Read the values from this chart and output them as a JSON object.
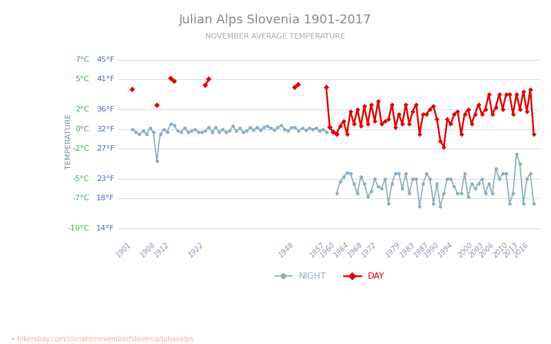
{
  "title": "Julian Alps Slovenia 1901-2017",
  "subtitle": "NOVEMBER AVERAGE TEMPERATURE",
  "ylabel": "TEMPERATURE",
  "footer": "hikersbay.com/climate/november/slovenia/julianalps",
  "legend_night": "NIGHT",
  "legend_day": "DAY",
  "night_color": "#8aafc0",
  "day_color": "#e00000",
  "background_color": "#ffffff",
  "grid_color": "#d5dde5",
  "title_color": "#888888",
  "subtitle_color": "#aaaaaa",
  "ylabel_color": "#7090a0",
  "ytick_celsius_color": "#44aa44",
  "ytick_fahrenheit_color": "#4466cc",
  "xtick_color": "#8899bb",
  "ylim_min": -11.0,
  "ylim_max": 8.5,
  "yticks_celsius": [
    7,
    5,
    2,
    0,
    -2,
    -5,
    -7,
    -10
  ],
  "yticks_fahrenheit": [
    45,
    41,
    36,
    32,
    27,
    23,
    18,
    14
  ],
  "xtick_years": [
    1901,
    1908,
    1912,
    1922,
    1948,
    1957,
    1960,
    1964,
    1968,
    1972,
    1979,
    1983,
    1987,
    1990,
    1994,
    2000,
    2003,
    2006,
    2010,
    2013,
    2016
  ],
  "day_segments": [
    {
      "years": [
        1901
      ],
      "vals": [
        4.0
      ]
    },
    {
      "years": [
        1908
      ],
      "vals": [
        2.4
      ]
    },
    {
      "years": [
        1912,
        1913
      ],
      "vals": [
        5.1,
        4.8
      ]
    },
    {
      "years": [
        1922,
        1923
      ],
      "vals": [
        4.4,
        5.0
      ]
    },
    {
      "years": [
        1948,
        1949
      ],
      "vals": [
        4.2,
        4.5
      ]
    },
    {
      "years": [
        1957,
        1958,
        1959,
        1960
      ],
      "vals": [
        4.2,
        0.2,
        -0.3,
        -0.5
      ]
    }
  ],
  "day_continuous_years": [
    1960,
    1961,
    1962,
    1963,
    1964,
    1965,
    1966,
    1967,
    1968,
    1969,
    1970,
    1971,
    1972,
    1973,
    1974,
    1975,
    1976,
    1977,
    1978,
    1979,
    1980,
    1981,
    1982,
    1983,
    1984,
    1985,
    1986,
    1987,
    1988,
    1989,
    1990,
    1991,
    1992,
    1993,
    1994,
    1995,
    1996,
    1997,
    1998,
    1999,
    2000,
    2001,
    2002,
    2003,
    2004,
    2005,
    2006,
    2007,
    2008,
    2009,
    2010,
    2011,
    2012,
    2013,
    2014,
    2015,
    2016,
    2017
  ],
  "day_continuous_vals": [
    -0.5,
    0.3,
    0.8,
    -0.5,
    1.8,
    0.5,
    2.0,
    0.3,
    2.3,
    0.5,
    2.5,
    0.8,
    2.8,
    0.5,
    0.8,
    1.0,
    2.5,
    0.2,
    1.5,
    0.5,
    2.5,
    0.5,
    1.8,
    2.5,
    -0.5,
    1.5,
    1.5,
    2.0,
    2.3,
    1.0,
    -1.2,
    -1.8,
    1.0,
    0.5,
    1.5,
    1.8,
    -0.5,
    1.5,
    2.0,
    0.5,
    1.5,
    2.5,
    1.5,
    2.0,
    3.5,
    1.5,
    2.2,
    3.5,
    2.0,
    3.5,
    3.5,
    1.5,
    3.5,
    2.0,
    3.8,
    1.8,
    4.0,
    -0.5
  ],
  "night_years": [
    1901,
    1902,
    1903,
    1904,
    1905,
    1906,
    1907,
    1908,
    1909,
    1910,
    1911,
    1912,
    1913,
    1914,
    1915,
    1916,
    1917,
    1918,
    1919,
    1920,
    1921,
    1922,
    1923,
    1924,
    1925,
    1926,
    1927,
    1928,
    1929,
    1930,
    1931,
    1932,
    1933,
    1934,
    1935,
    1936,
    1937,
    1938,
    1939,
    1940,
    1941,
    1942,
    1943,
    1944,
    1945,
    1946,
    1947,
    1948,
    1949,
    1950,
    1951,
    1952,
    1953,
    1954,
    1955,
    1956,
    1957,
    1960,
    1961,
    1962,
    1963,
    1964,
    1965,
    1966,
    1967,
    1968,
    1969,
    1970,
    1971,
    1972,
    1973,
    1974,
    1975,
    1976,
    1977,
    1978,
    1979,
    1980,
    1981,
    1982,
    1983,
    1984,
    1985,
    1986,
    1987,
    1988,
    1989,
    1990,
    1991,
    1992,
    1993,
    1994,
    1995,
    1996,
    1997,
    1998,
    1999,
    2000,
    2001,
    2002,
    2003,
    2004,
    2005,
    2006,
    2007,
    2008,
    2009,
    2010,
    2011,
    2012,
    2013,
    2014,
    2015,
    2016,
    2017
  ],
  "night_vals": [
    0.0,
    -0.3,
    -0.5,
    -0.2,
    -0.5,
    0.1,
    -0.3,
    -3.2,
    -0.5,
    0.0,
    -0.3,
    0.5,
    0.4,
    -0.2,
    -0.3,
    0.1,
    -0.3,
    -0.2,
    0.0,
    -0.3,
    -0.3,
    -0.2,
    0.2,
    -0.3,
    0.2,
    -0.3,
    0.0,
    -0.3,
    -0.2,
    0.3,
    -0.2,
    0.1,
    -0.3,
    -0.2,
    0.2,
    -0.1,
    0.2,
    -0.1,
    0.2,
    0.3,
    0.1,
    -0.1,
    0.2,
    0.4,
    0.0,
    -0.2,
    0.2,
    0.2,
    -0.2,
    0.1,
    -0.1,
    0.1,
    0.0,
    0.1,
    -0.2,
    0.0,
    -0.3,
    -6.5,
    -5.3,
    -4.8,
    -4.4,
    -4.5,
    -5.5,
    -6.5,
    -4.8,
    -5.5,
    -6.8,
    -6.3,
    -5.0,
    -5.8,
    -6.0,
    -5.0,
    -7.5,
    -5.5,
    -4.5,
    -4.5,
    -6.0,
    -4.5,
    -6.5,
    -5.0,
    -5.0,
    -7.8,
    -5.5,
    -4.5,
    -5.0,
    -7.5,
    -5.5,
    -7.8,
    -6.5,
    -5.0,
    -5.0,
    -5.8,
    -6.5,
    -6.5,
    -4.5,
    -6.8,
    -5.5,
    -6.0,
    -5.5,
    -5.0,
    -6.5,
    -5.5,
    -6.5,
    -4.0,
    -5.0,
    -4.5,
    -4.5,
    -7.5,
    -6.5,
    -2.5,
    -3.5,
    -7.5,
    -5.0,
    -4.5,
    -7.5
  ]
}
